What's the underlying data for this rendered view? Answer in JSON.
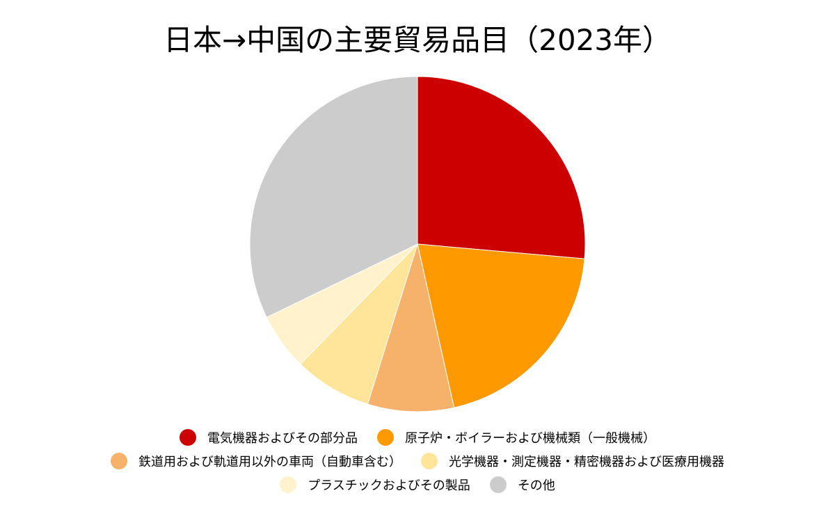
{
  "chart_data": {
    "type": "pie",
    "title": "日本→中国の主要貿易品目（2023年）",
    "start_angle_deg": 0,
    "direction": "clockwise",
    "legend_position": "bottom",
    "slices": [
      {
        "label": "電気機器およびその部分品",
        "value": 26.4,
        "color": "#cc0000"
      },
      {
        "label": "原子炉・ボイラーおよび機械類（一般機械）",
        "value": 20.1,
        "color": "#ff9900"
      },
      {
        "label": "鉄道用および軌道用以外の車両（自動車含む）",
        "value": 8.3,
        "color": "#f6b26b"
      },
      {
        "label": "光学機器・測定機器・精密機器および医療用機器",
        "value": 7.5,
        "color": "#ffe599"
      },
      {
        "label": "プラスチックおよびその製品",
        "value": 5.5,
        "color": "#fff2cc"
      },
      {
        "label": "その他",
        "value": 32.2,
        "color": "#cccccc"
      }
    ]
  }
}
